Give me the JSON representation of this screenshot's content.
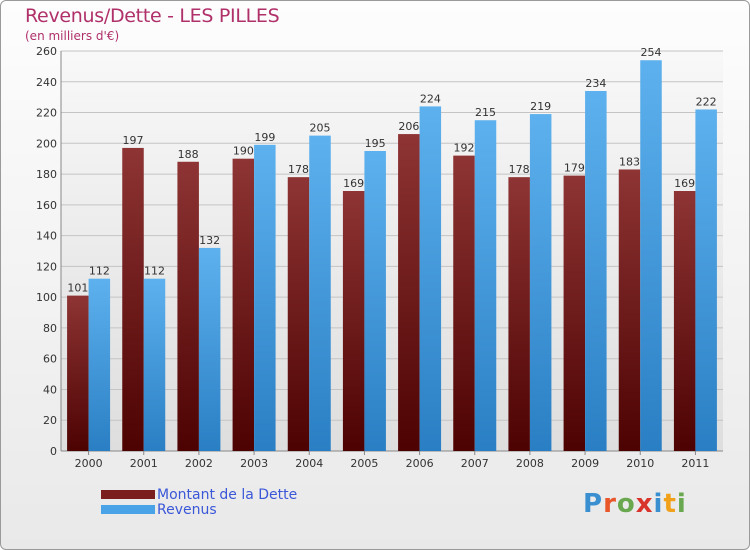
{
  "header": {
    "title": "Revenus/Dette - LES PILLES",
    "subtitle": "(en milliers d'€)"
  },
  "legend": {
    "items": [
      {
        "label": "Montant de la Dette",
        "color": "#7a1e1e"
      },
      {
        "label": "Revenus",
        "color": "#4aa3e6"
      }
    ]
  },
  "logo": {
    "text": "Proxiti",
    "colors": [
      "#3a8fd0",
      "#e8562a",
      "#6aa84f",
      "#d9342b",
      "#3a8fd0",
      "#f0a019",
      "#6aa84f"
    ]
  },
  "chart_data": {
    "type": "bar",
    "title": "Revenus/Dette - LES PILLES",
    "subtitle": "(en milliers d'€)",
    "categories": [
      "2000",
      "2001",
      "2002",
      "2003",
      "2004",
      "2005",
      "2006",
      "2007",
      "2008",
      "2009",
      "2010",
      "2011"
    ],
    "series": [
      {
        "name": "Montant de la Dette",
        "color": "#7a1e1e",
        "values": [
          101,
          197,
          188,
          190,
          178,
          169,
          206,
          192,
          178,
          179,
          183,
          169
        ]
      },
      {
        "name": "Revenus",
        "color": "#4aa3e6",
        "values": [
          112,
          112,
          132,
          199,
          205,
          195,
          224,
          215,
          219,
          234,
          254,
          222
        ]
      }
    ],
    "ylim": [
      0,
      260
    ],
    "yticks": [
      0,
      20,
      40,
      60,
      80,
      100,
      120,
      140,
      160,
      180,
      200,
      220,
      240,
      260
    ],
    "grid": true,
    "legend_position": "bottom-left"
  }
}
